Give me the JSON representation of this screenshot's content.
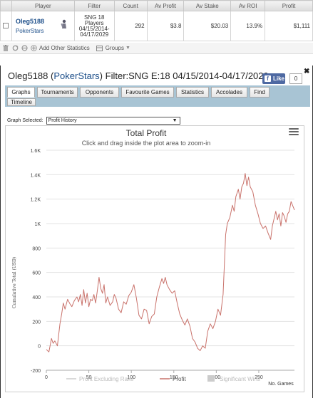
{
  "table": {
    "headers": [
      "Player",
      "Filter",
      "Count",
      "Av Profit",
      "Av Stake",
      "Av ROI",
      "Profit"
    ],
    "row": {
      "player_name": "Oleg5188",
      "player_site": "PokerStars",
      "filter_lines": [
        "SNG 18",
        "Players",
        "04/15/2014-",
        "04/17/2029"
      ],
      "count": "292",
      "av_profit": "$3.8",
      "av_stake": "$20.03",
      "av_roi": "13.9%",
      "profit": "$1,111"
    }
  },
  "toolbar": {
    "add_stats_label": "Add Other Statistics",
    "groups_label": "Groups"
  },
  "dialog": {
    "title_player": "Oleg5188",
    "title_site_open": "(",
    "title_site": "PokerStars",
    "title_site_close": ")",
    "title_filter": "Filter:SNG E:18 04/15/2014-04/17/2029",
    "like_label": "Like",
    "like_count": "0",
    "tabs": [
      "Graphs",
      "Tournaments",
      "Opponents",
      "Favourite Games",
      "Statistics",
      "Accolades",
      "Find",
      "Timeline"
    ],
    "graph_selected_label": "Graph Selected:",
    "graph_selected_value": "Profit History"
  },
  "chart_data": {
    "type": "line",
    "title": "Total Profit",
    "subtitle": "Click and drag inside the plot area to zoom-in",
    "ylabel": "Cumulative Total (USD)",
    "xlabel": "No. Games",
    "xlim": [
      0,
      292
    ],
    "ylim": [
      -200,
      1600
    ],
    "x_ticks": [
      0,
      50,
      100,
      150,
      200,
      250
    ],
    "y_ticks": [
      -200,
      0,
      200,
      400,
      600,
      800,
      1000,
      1200,
      1400,
      1600
    ],
    "y_tick_labels": [
      "-200",
      "0",
      "200",
      "400",
      "600",
      "800",
      "1K",
      "1.2K",
      "1.4K",
      "1.6K"
    ],
    "grid": "horizontal",
    "legend": [
      "Profit Excluding Rake",
      "Profit",
      "Significant Wins"
    ],
    "series": [
      {
        "name": "Profit",
        "color": "#c9726b",
        "points": [
          [
            0,
            -30
          ],
          [
            3,
            -50
          ],
          [
            6,
            60
          ],
          [
            8,
            20
          ],
          [
            10,
            40
          ],
          [
            13,
            0
          ],
          [
            16,
            180
          ],
          [
            18,
            260
          ],
          [
            20,
            350
          ],
          [
            22,
            300
          ],
          [
            25,
            380
          ],
          [
            28,
            340
          ],
          [
            30,
            320
          ],
          [
            33,
            370
          ],
          [
            36,
            400
          ],
          [
            38,
            360
          ],
          [
            40,
            420
          ],
          [
            42,
            330
          ],
          [
            44,
            460
          ],
          [
            46,
            350
          ],
          [
            48,
            430
          ],
          [
            50,
            320
          ],
          [
            52,
            380
          ],
          [
            54,
            370
          ],
          [
            56,
            420
          ],
          [
            58,
            350
          ],
          [
            60,
            450
          ],
          [
            62,
            560
          ],
          [
            64,
            470
          ],
          [
            66,
            430
          ],
          [
            68,
            500
          ],
          [
            70,
            350
          ],
          [
            72,
            400
          ],
          [
            75,
            330
          ],
          [
            78,
            360
          ],
          [
            80,
            420
          ],
          [
            82,
            390
          ],
          [
            85,
            300
          ],
          [
            88,
            270
          ],
          [
            91,
            360
          ],
          [
            94,
            340
          ],
          [
            97,
            410
          ],
          [
            100,
            440
          ],
          [
            103,
            500
          ],
          [
            106,
            390
          ],
          [
            109,
            250
          ],
          [
            112,
            220
          ],
          [
            115,
            300
          ],
          [
            118,
            290
          ],
          [
            121,
            180
          ],
          [
            124,
            240
          ],
          [
            127,
            260
          ],
          [
            130,
            400
          ],
          [
            133,
            480
          ],
          [
            136,
            550
          ],
          [
            138,
            510
          ],
          [
            140,
            560
          ],
          [
            142,
            500
          ],
          [
            145,
            460
          ],
          [
            148,
            430
          ],
          [
            151,
            450
          ],
          [
            154,
            350
          ],
          [
            157,
            260
          ],
          [
            160,
            210
          ],
          [
            163,
            170
          ],
          [
            166,
            220
          ],
          [
            169,
            160
          ],
          [
            172,
            60
          ],
          [
            175,
            30
          ],
          [
            178,
            -20
          ],
          [
            181,
            -40
          ],
          [
            184,
            0
          ],
          [
            187,
            -20
          ],
          [
            190,
            120
          ],
          [
            193,
            180
          ],
          [
            196,
            140
          ],
          [
            199,
            200
          ],
          [
            202,
            300
          ],
          [
            205,
            250
          ],
          [
            208,
            420
          ],
          [
            211,
            910
          ],
          [
            213,
            1000
          ],
          [
            216,
            1050
          ],
          [
            219,
            1150
          ],
          [
            221,
            1100
          ],
          [
            223,
            1220
          ],
          [
            226,
            1280
          ],
          [
            228,
            1200
          ],
          [
            230,
            1300
          ],
          [
            232,
            1330
          ],
          [
            234,
            1410
          ],
          [
            236,
            1310
          ],
          [
            238,
            1380
          ],
          [
            240,
            1300
          ],
          [
            243,
            1260
          ],
          [
            246,
            1150
          ],
          [
            249,
            1080
          ],
          [
            252,
            1000
          ],
          [
            255,
            960
          ],
          [
            258,
            980
          ],
          [
            261,
            920
          ],
          [
            264,
            870
          ],
          [
            266,
            980
          ],
          [
            268,
            1040
          ],
          [
            270,
            1100
          ],
          [
            272,
            1030
          ],
          [
            274,
            1080
          ],
          [
            276,
            980
          ],
          [
            278,
            1090
          ],
          [
            280,
            1060
          ],
          [
            282,
            1010
          ],
          [
            284,
            1080
          ],
          [
            286,
            1100
          ],
          [
            288,
            1180
          ],
          [
            292,
            1111
          ]
        ]
      }
    ]
  }
}
